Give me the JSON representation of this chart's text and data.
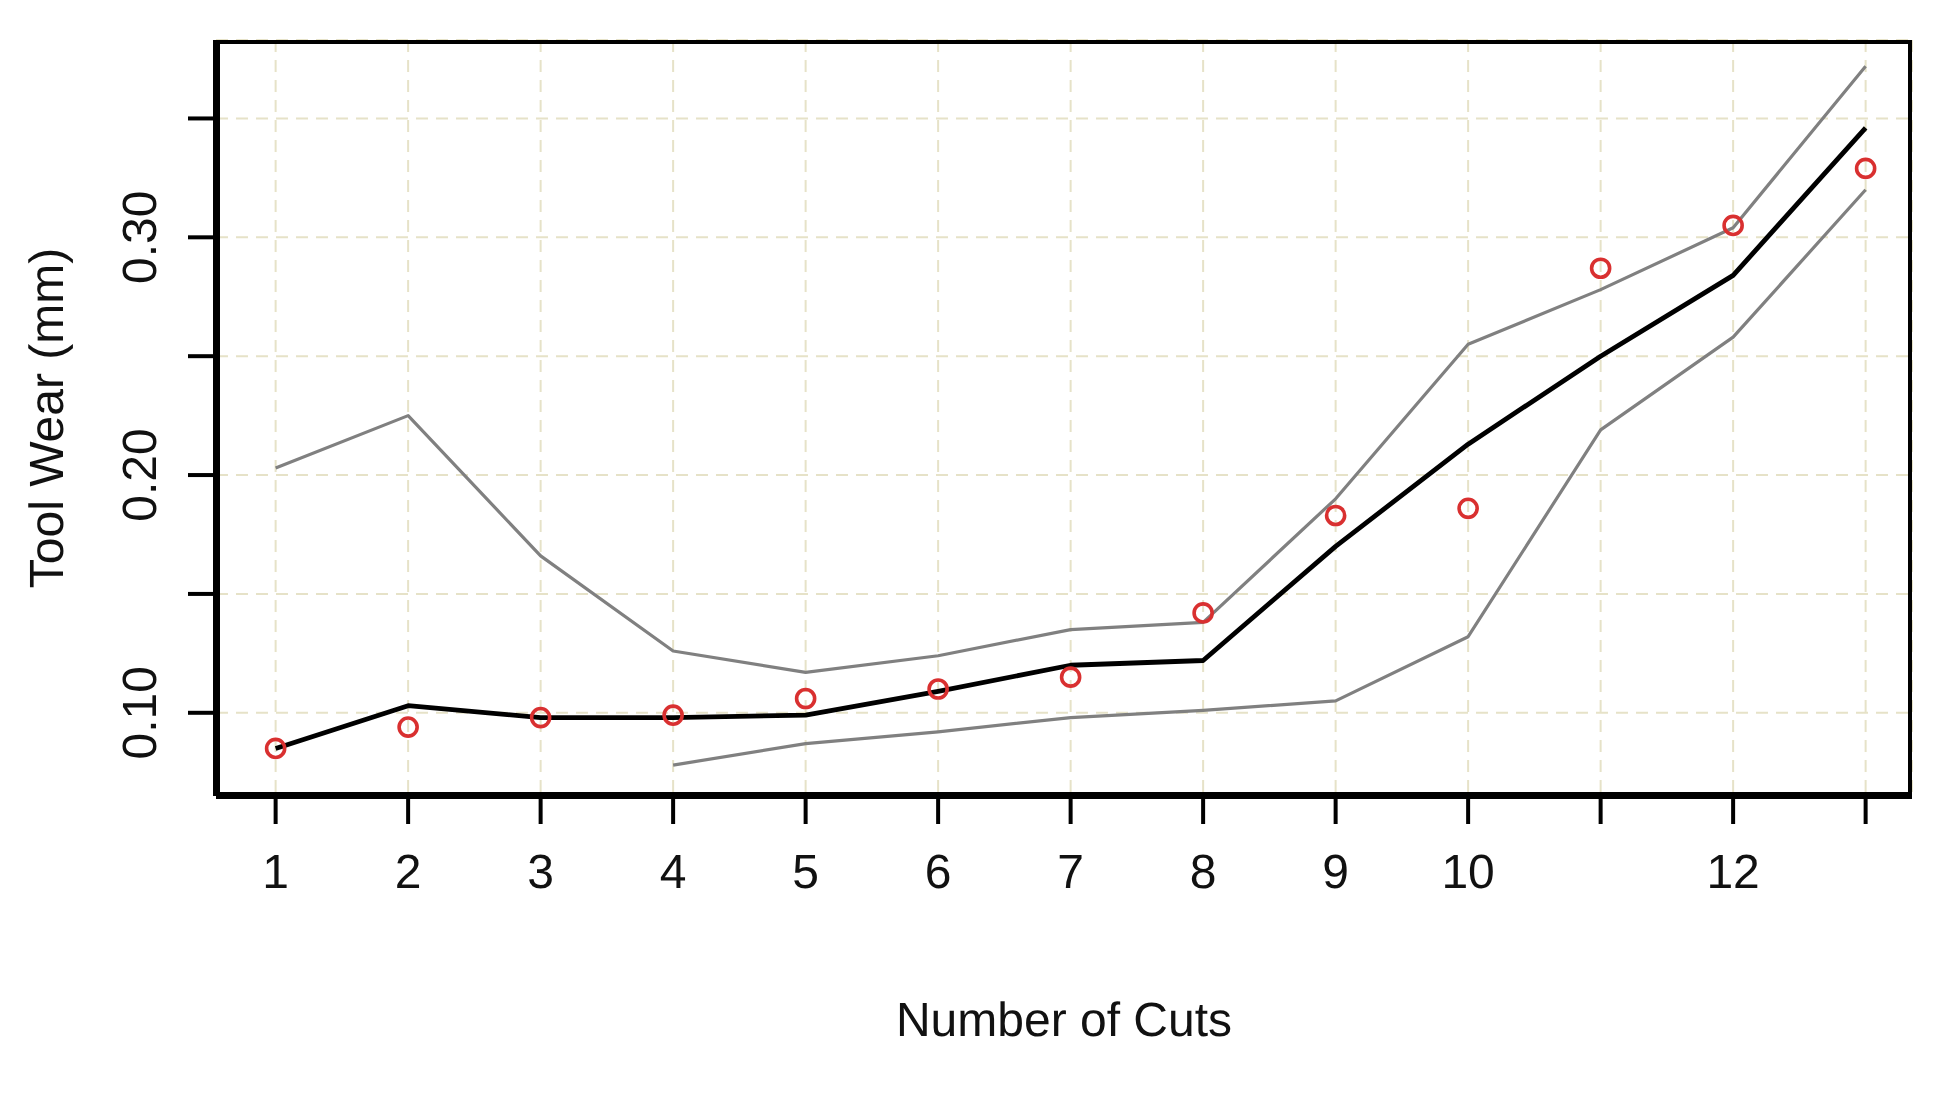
{
  "chart_data": {
    "type": "line",
    "xlabel": "Number of Cuts",
    "ylabel": "Tool Wear (mm)",
    "x": [
      1,
      2,
      3,
      4,
      5,
      6,
      7,
      8,
      9,
      10,
      11,
      12,
      13
    ],
    "series": [
      {
        "color": "#808080",
        "marker": "none",
        "values": [
          0.203,
          0.225,
          0.166,
          0.126,
          0.117,
          0.124,
          0.135,
          0.138,
          0.19,
          0.255,
          0.278,
          0.304,
          0.372
        ]
      },
      {
        "color": "#808080",
        "marker": "none",
        "values": [
          null,
          null,
          null,
          0.078,
          0.087,
          0.092,
          0.098,
          0.101,
          0.105,
          0.132,
          0.219,
          0.258,
          0.32
        ]
      },
      {
        "color": "#000000",
        "marker": "none",
        "values": [
          0.085,
          0.103,
          0.098,
          0.098,
          0.099,
          0.109,
          0.12,
          0.122,
          0.17,
          0.213,
          0.25,
          0.284,
          0.346
        ]
      },
      {
        "type": "scatter",
        "color": "#d93030",
        "marker": "circle",
        "values": [
          0.085,
          0.094,
          0.098,
          0.099,
          0.106,
          0.11,
          0.115,
          0.142,
          0.183,
          0.186,
          0.287,
          0.305,
          0.329
        ]
      }
    ],
    "xlim": [
      0.55,
      13.35
    ],
    "xticks": [
      1,
      2,
      3,
      4,
      5,
      6,
      7,
      8,
      9,
      10,
      {
        "value": 11,
        "label": null
      },
      12,
      {
        "value": 13,
        "label": null
      }
    ],
    "ylim": [
      0.065,
      0.383
    ],
    "yticks": [
      {
        "value": 0.1,
        "label": "0.10"
      },
      {
        "value": 0.15,
        "label": null
      },
      {
        "value": 0.2,
        "label": "0.20"
      },
      {
        "value": 0.25,
        "label": null
      },
      {
        "value": 0.3,
        "label": "0.30"
      },
      {
        "value": 0.35,
        "label": null
      }
    ],
    "grid": true
  }
}
